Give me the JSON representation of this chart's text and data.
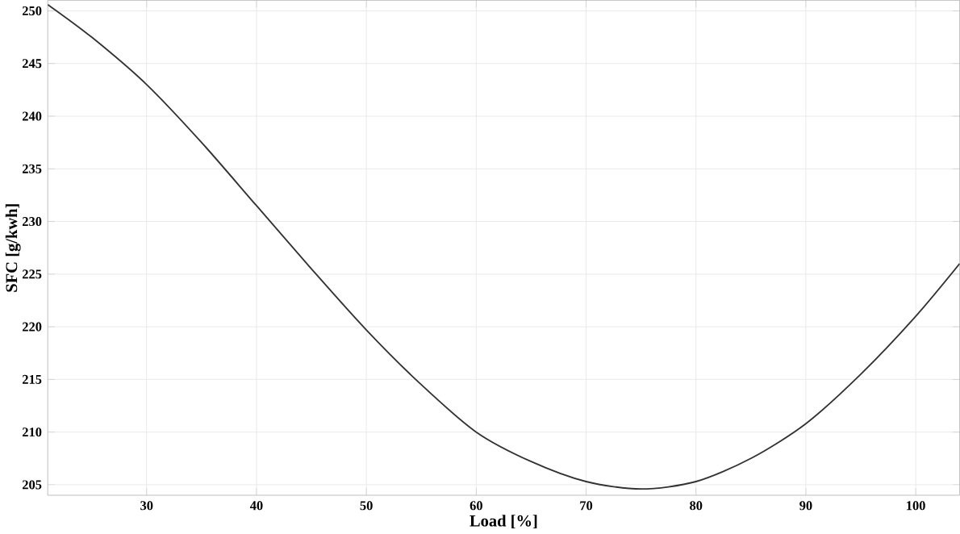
{
  "chart_data": {
    "type": "line",
    "xlabel": "Load [%]",
    "ylabel": "SFC [g/kwh]",
    "series": [
      {
        "color": "#333333",
        "x": [
          21,
          25,
          30,
          35,
          40,
          45,
          50,
          55,
          60,
          65,
          70,
          75,
          80,
          85,
          90,
          95,
          100,
          104
        ],
        "values": [
          250.6,
          247.5,
          243,
          237.5,
          231.5,
          225.5,
          219.7,
          214.5,
          210,
          207.2,
          205.3,
          204.6,
          205.3,
          207.5,
          210.8,
          215.5,
          221,
          226
        ]
      }
    ],
    "xlim": [
      21,
      104
    ],
    "ylim": [
      204,
      251
    ],
    "xticks": [
      30,
      40,
      50,
      60,
      70,
      80,
      90,
      100
    ],
    "yticks": [
      205,
      210,
      215,
      220,
      225,
      230,
      235,
      240,
      245,
      250
    ],
    "grid": true,
    "marker": "none",
    "line_style": "solid"
  }
}
